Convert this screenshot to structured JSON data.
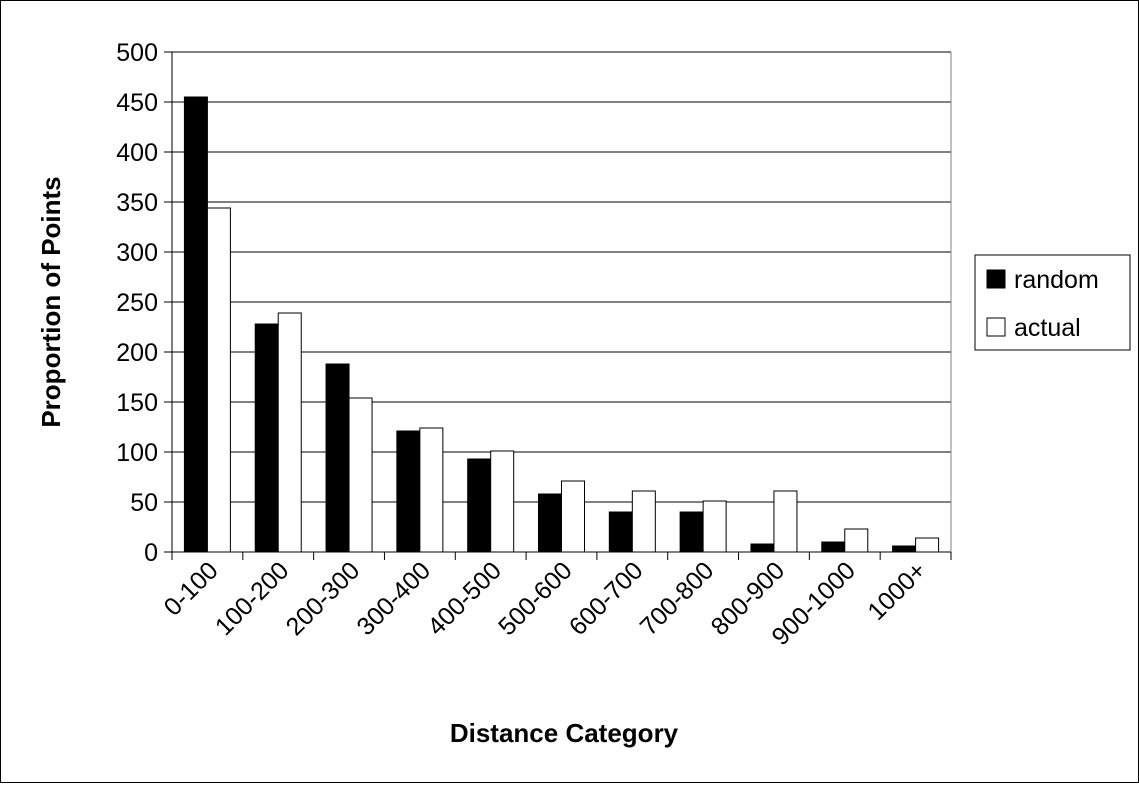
{
  "chart_data": {
    "type": "bar",
    "xlabel": "Distance Category",
    "ylabel": "Proportion of Points",
    "ylim": [
      0,
      500
    ],
    "yticks": [
      0,
      50,
      100,
      150,
      200,
      250,
      300,
      350,
      400,
      450,
      500
    ],
    "grid": true,
    "legend_position": "right",
    "categories": [
      "0-100",
      "100-200",
      "200-300",
      "300-400",
      "400-500",
      "500-600",
      "600-700",
      "700-800",
      "800-900",
      "900-1000",
      "1000+"
    ],
    "series": [
      {
        "name": "random",
        "color": "#000000",
        "values": [
          455,
          228,
          188,
          121,
          93,
          58,
          40,
          40,
          8,
          10,
          6
        ]
      },
      {
        "name": "actual",
        "color": "#ffffff",
        "values": [
          344,
          239,
          154,
          124,
          101,
          71,
          61,
          51,
          61,
          23,
          14
        ]
      }
    ]
  }
}
